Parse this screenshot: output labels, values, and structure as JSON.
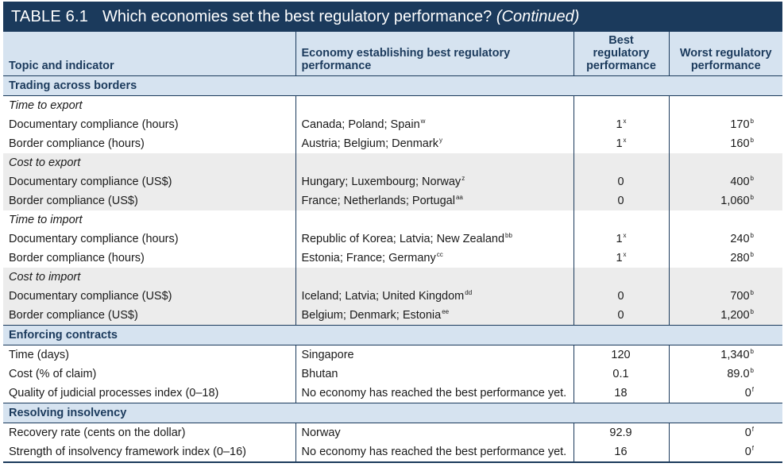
{
  "title": {
    "label": "TABLE 6.1",
    "text": "Which economies set the best regulatory performance?",
    "continued": "(Continued)"
  },
  "headers": {
    "topic": "Topic and indicator",
    "economy": "Economy establishing best regulatory performance",
    "best": "Best regulatory performance",
    "worst": "Worst regulatory performance"
  },
  "sections": {
    "trading": "Trading across borders",
    "enforcing": "Enforcing contracts",
    "resolving": "Resolving insolvency"
  },
  "rows": [
    {
      "topic": "Time to export",
      "economy": "",
      "econ_note": "",
      "best": "",
      "best_note": "",
      "worst": "",
      "worst_note": ""
    },
    {
      "topic": "Documentary compliance (hours)",
      "economy": "Canada; Poland; Spain",
      "econ_note": "w",
      "best": "1",
      "best_note": "x",
      "worst": "170",
      "worst_note": "b"
    },
    {
      "topic": "Border compliance (hours)",
      "economy": "Austria; Belgium; Denmark",
      "econ_note": "y",
      "best": "1",
      "best_note": "x",
      "worst": "160",
      "worst_note": "b"
    },
    {
      "topic": "Cost to export",
      "economy": "",
      "econ_note": "",
      "best": "",
      "best_note": "",
      "worst": "",
      "worst_note": ""
    },
    {
      "topic": "Documentary compliance (US$)",
      "economy": "Hungary; Luxembourg; Norway",
      "econ_note": "z",
      "best": "0",
      "best_note": "",
      "worst": "400",
      "worst_note": "b"
    },
    {
      "topic": "Border compliance (US$)",
      "economy": "France; Netherlands; Portugal",
      "econ_note": "aa",
      "best": "0",
      "best_note": "",
      "worst": "1,060",
      "worst_note": "b"
    },
    {
      "topic": "Time to import",
      "economy": "",
      "econ_note": "",
      "best": "",
      "best_note": "",
      "worst": "",
      "worst_note": ""
    },
    {
      "topic": "Documentary compliance (hours)",
      "economy": "Republic of Korea; Latvia; New Zealand",
      "econ_note": "bb",
      "best": "1",
      "best_note": "x",
      "worst": "240",
      "worst_note": "b"
    },
    {
      "topic": "Border compliance (hours)",
      "economy": "Estonia; France; Germany",
      "econ_note": "cc",
      "best": "1",
      "best_note": "x",
      "worst": "280",
      "worst_note": "b"
    },
    {
      "topic": "Cost to import",
      "economy": "",
      "econ_note": "",
      "best": "",
      "best_note": "",
      "worst": "",
      "worst_note": ""
    },
    {
      "topic": "Documentary compliance (US$)",
      "economy": "Iceland; Latvia; United Kingdom",
      "econ_note": "dd",
      "best": "0",
      "best_note": "",
      "worst": "700",
      "worst_note": "b"
    },
    {
      "topic": "Border compliance (US$)",
      "economy": "Belgium; Denmark; Estonia",
      "econ_note": "ee",
      "best": "0",
      "best_note": "",
      "worst": "1,200",
      "worst_note": "b"
    },
    {
      "topic": "Time (days)",
      "economy": "Singapore",
      "econ_note": "",
      "best": "120",
      "best_note": "",
      "worst": "1,340",
      "worst_note": "b"
    },
    {
      "topic": "Cost (% of claim)",
      "economy": "Bhutan",
      "econ_note": "",
      "best": "0.1",
      "best_note": "",
      "worst": "89.0",
      "worst_note": "b"
    },
    {
      "topic": "Quality of judicial processes index (0–18)",
      "economy": "No economy has reached the best performance yet.",
      "econ_note": "",
      "best": "18",
      "best_note": "",
      "worst": "0",
      "worst_note": "f"
    },
    {
      "topic": "Recovery rate (cents on the dollar)",
      "economy": "Norway",
      "econ_note": "",
      "best": "92.9",
      "best_note": "",
      "worst": "0",
      "worst_note": "f"
    },
    {
      "topic": "Strength of insolvency framework index (0–16)",
      "economy": "No economy has reached the best performance yet.",
      "econ_note": "",
      "best": "16",
      "best_note": "",
      "worst": "0",
      "worst_note": "f"
    }
  ],
  "colors": {
    "title_bg": "#1b3a5c",
    "header_bg": "#d6e3f0",
    "shade_bg": "#ececec",
    "rule": "#1b3a5c"
  }
}
